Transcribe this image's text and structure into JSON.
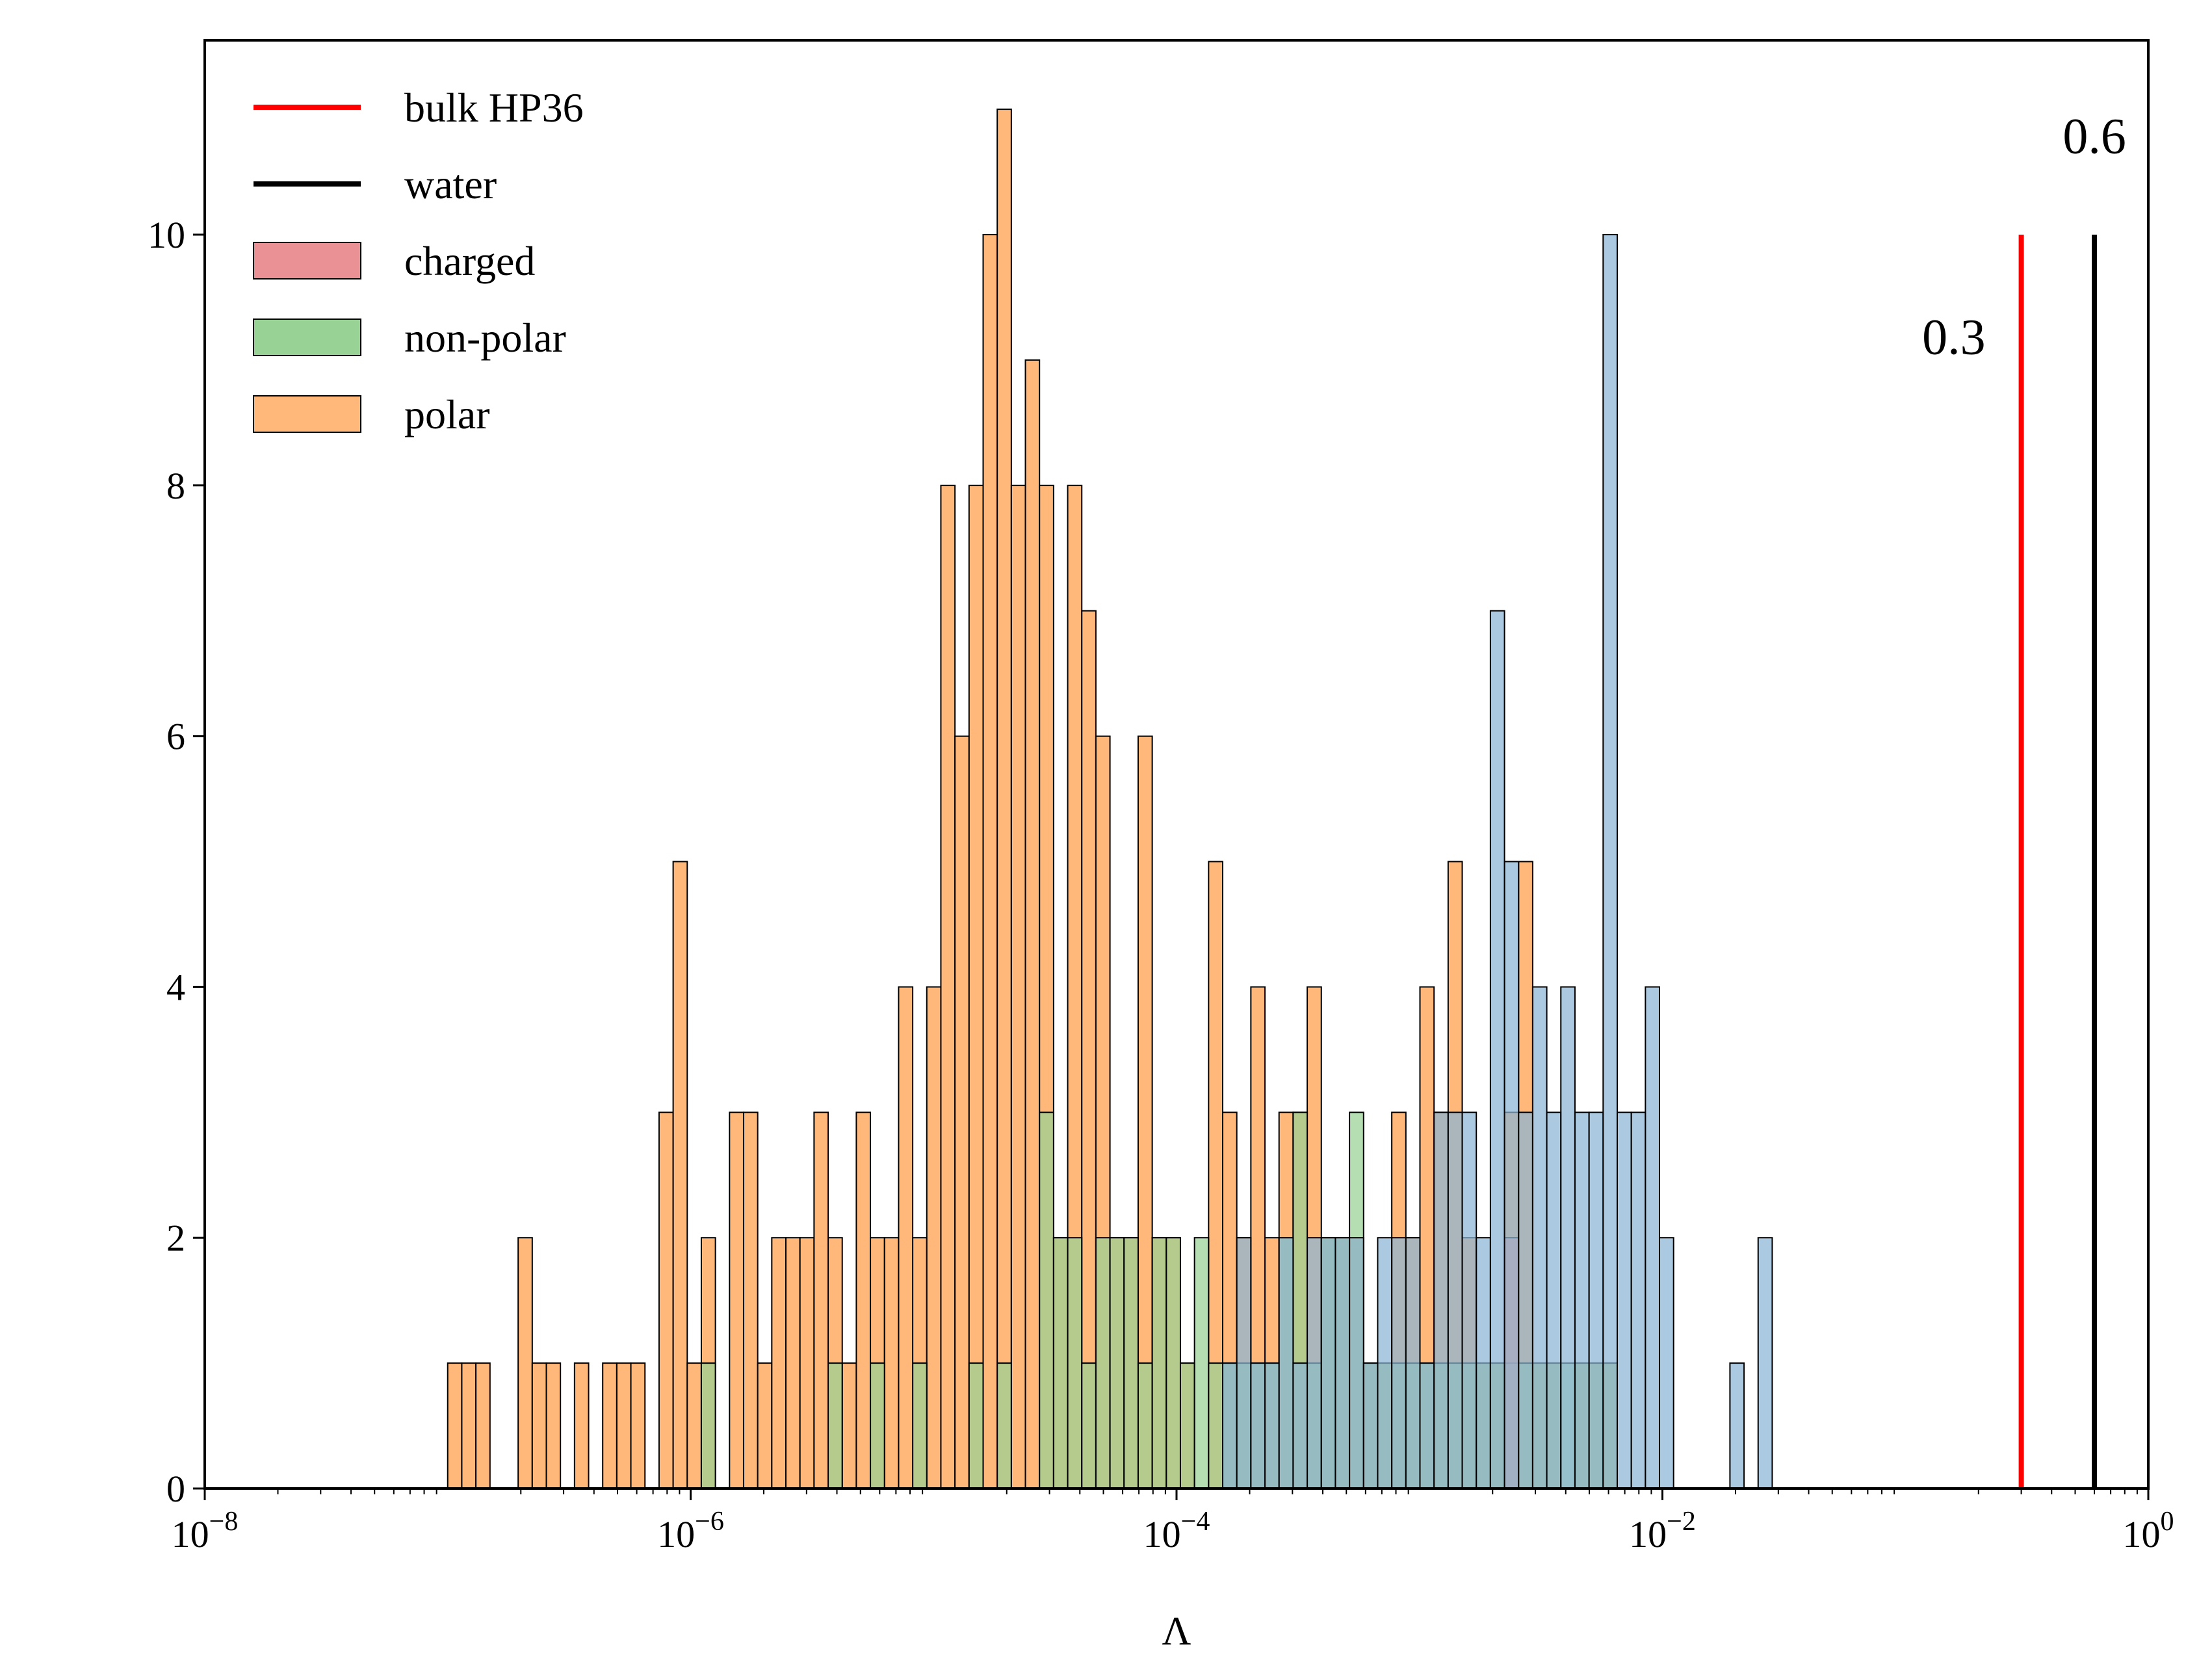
{
  "chart_data": {
    "type": "histogram",
    "xscale": "log",
    "xlim": [
      1e-08,
      1
    ],
    "ylim": [
      0,
      11.55
    ],
    "xlabel": "Λ",
    "ylabel": "",
    "title": "",
    "grid": false,
    "legend_position": "top-left",
    "x_ticks": [
      {
        "value": 1e-08,
        "base": "10",
        "exp": "−8"
      },
      {
        "value": 1e-06,
        "base": "10",
        "exp": "−6"
      },
      {
        "value": 0.0001,
        "base": "10",
        "exp": "−4"
      },
      {
        "value": 0.01,
        "base": "10",
        "exp": "−2"
      },
      {
        "value": 1,
        "base": "10",
        "exp": "0"
      }
    ],
    "y_ticks": [
      {
        "value": 0,
        "label": "0"
      },
      {
        "value": 2,
        "label": "2"
      },
      {
        "value": 4,
        "label": "4"
      },
      {
        "value": 6,
        "label": "6"
      },
      {
        "value": 8,
        "label": "8"
      },
      {
        "value": 10,
        "label": "10"
      }
    ],
    "bin_log_range": [
      -7.0,
      -1.2
    ],
    "bin_count": 100,
    "series": [
      {
        "name": "polar",
        "color": "#ffb87a",
        "bins": [
          [
            0,
            1
          ],
          [
            1,
            1
          ],
          [
            2,
            1
          ],
          [
            5,
            2
          ],
          [
            6,
            1
          ],
          [
            7,
            1
          ],
          [
            9,
            1
          ],
          [
            11,
            1
          ],
          [
            12,
            1
          ],
          [
            13,
            1
          ],
          [
            15,
            3
          ],
          [
            16,
            5
          ],
          [
            17,
            1
          ],
          [
            18,
            2
          ],
          [
            20,
            3
          ],
          [
            21,
            3
          ],
          [
            22,
            1
          ],
          [
            23,
            2
          ],
          [
            24,
            2
          ],
          [
            25,
            2
          ],
          [
            26,
            3
          ],
          [
            27,
            2
          ],
          [
            28,
            1
          ],
          [
            29,
            3
          ],
          [
            30,
            2
          ],
          [
            31,
            2
          ],
          [
            32,
            4
          ],
          [
            33,
            2
          ],
          [
            34,
            4
          ],
          [
            35,
            8
          ],
          [
            36,
            6
          ],
          [
            37,
            8
          ],
          [
            38,
            10
          ],
          [
            39,
            11
          ],
          [
            40,
            8
          ],
          [
            41,
            9
          ],
          [
            42,
            8
          ],
          [
            43,
            2
          ],
          [
            44,
            8
          ],
          [
            45,
            7
          ],
          [
            46,
            6
          ],
          [
            47,
            2
          ],
          [
            48,
            2
          ],
          [
            49,
            6
          ],
          [
            50,
            2
          ],
          [
            51,
            2
          ],
          [
            52,
            1
          ],
          [
            54,
            5
          ],
          [
            55,
            3
          ],
          [
            56,
            2
          ],
          [
            57,
            4
          ],
          [
            58,
            2
          ],
          [
            59,
            3
          ],
          [
            60,
            3
          ],
          [
            61,
            4
          ],
          [
            62,
            2
          ],
          [
            63,
            2
          ],
          [
            64,
            2
          ],
          [
            65,
            1
          ],
          [
            66,
            1
          ],
          [
            67,
            3
          ],
          [
            68,
            2
          ],
          [
            69,
            4
          ],
          [
            70,
            3
          ],
          [
            71,
            5
          ],
          [
            72,
            2
          ],
          [
            73,
            1
          ],
          [
            74,
            1
          ],
          [
            75,
            3
          ],
          [
            76,
            5
          ],
          [
            77,
            1
          ],
          [
            78,
            1
          ],
          [
            80,
            1
          ],
          [
            81,
            1
          ],
          [
            82,
            1
          ]
        ]
      },
      {
        "name": "non-polar",
        "color": "#98d294",
        "bins": [
          [
            18,
            1
          ],
          [
            27,
            1
          ],
          [
            30,
            1
          ],
          [
            33,
            1
          ],
          [
            37,
            1
          ],
          [
            39,
            1
          ],
          [
            42,
            3
          ],
          [
            43,
            2
          ],
          [
            44,
            2
          ],
          [
            45,
            1
          ],
          [
            46,
            2
          ],
          [
            47,
            2
          ],
          [
            48,
            2
          ],
          [
            49,
            1
          ],
          [
            50,
            2
          ],
          [
            51,
            2
          ],
          [
            52,
            1
          ],
          [
            53,
            2
          ],
          [
            54,
            1
          ],
          [
            55,
            1
          ],
          [
            56,
            1
          ],
          [
            57,
            1
          ],
          [
            58,
            1
          ],
          [
            59,
            2
          ],
          [
            60,
            3
          ],
          [
            61,
            1
          ],
          [
            62,
            2
          ],
          [
            63,
            2
          ],
          [
            64,
            3
          ],
          [
            65,
            1
          ],
          [
            66,
            1
          ],
          [
            67,
            1
          ],
          [
            68,
            1
          ],
          [
            69,
            1
          ],
          [
            70,
            1
          ],
          [
            71,
            1
          ],
          [
            72,
            1
          ],
          [
            73,
            1
          ],
          [
            74,
            1
          ],
          [
            75,
            1
          ],
          [
            76,
            1
          ],
          [
            77,
            1
          ],
          [
            78,
            1
          ],
          [
            79,
            1
          ],
          [
            80,
            1
          ],
          [
            81,
            1
          ],
          [
            82,
            1
          ]
        ]
      },
      {
        "name": "charged",
        "color": "#e99195",
        "bins": [
          [
            75,
            2
          ]
        ]
      },
      {
        "name": "",
        "color": "#8bb6d6",
        "bins": [
          [
            55,
            1
          ],
          [
            56,
            2
          ],
          [
            57,
            1
          ],
          [
            58,
            1
          ],
          [
            59,
            2
          ],
          [
            60,
            1
          ],
          [
            61,
            2
          ],
          [
            62,
            2
          ],
          [
            63,
            2
          ],
          [
            64,
            2
          ],
          [
            65,
            1
          ],
          [
            66,
            2
          ],
          [
            67,
            2
          ],
          [
            68,
            2
          ],
          [
            69,
            1
          ],
          [
            70,
            3
          ],
          [
            71,
            3
          ],
          [
            72,
            3
          ],
          [
            73,
            2
          ],
          [
            74,
            7
          ],
          [
            75,
            5
          ],
          [
            76,
            3
          ],
          [
            77,
            4
          ],
          [
            78,
            3
          ],
          [
            79,
            4
          ],
          [
            80,
            3
          ],
          [
            81,
            3
          ],
          [
            82,
            10
          ],
          [
            83,
            3
          ],
          [
            84,
            3
          ],
          [
            85,
            4
          ],
          [
            86,
            2
          ],
          [
            91,
            1
          ],
          [
            93,
            2
          ]
        ]
      }
    ],
    "reference_lines": [
      {
        "name": "bulk HP36",
        "x": 0.3,
        "label": "0.3",
        "color": "#ff0000",
        "ymax": 10
      },
      {
        "name": "water",
        "x": 0.6,
        "label": "0.6",
        "color": "#000000",
        "ymax": 10
      }
    ],
    "legend": [
      {
        "label": "bulk HP36",
        "kind": "line",
        "color": "#ff0000"
      },
      {
        "label": "water",
        "kind": "line",
        "color": "#000000"
      },
      {
        "label": "charged",
        "kind": "patch",
        "color": "#e99195"
      },
      {
        "label": "non-polar",
        "kind": "patch",
        "color": "#98d294"
      },
      {
        "label": "polar",
        "kind": "patch",
        "color": "#ffb87a"
      }
    ]
  }
}
